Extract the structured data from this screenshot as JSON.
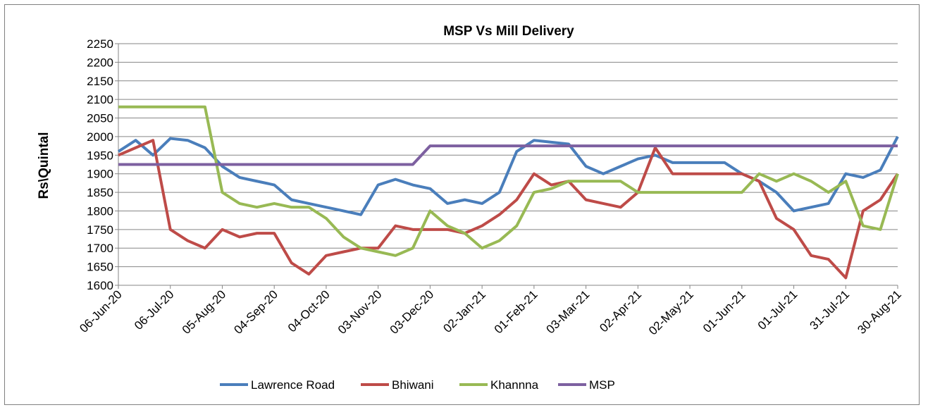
{
  "chart_data": {
    "type": "line",
    "title": "MSP Vs Mill Delivery",
    "y_label": "Rs\\Quintal",
    "x": [
      "06-Jun-20",
      "16-Jun-20",
      "26-Jun-20",
      "06-Jul-20",
      "16-Jul-20",
      "26-Jul-20",
      "05-Aug-20",
      "15-Aug-20",
      "25-Aug-20",
      "04-Sep-20",
      "14-Sep-20",
      "24-Sep-20",
      "04-Oct-20",
      "14-Oct-20",
      "24-Oct-20",
      "03-Nov-20",
      "13-Nov-20",
      "23-Nov-20",
      "03-Dec-20",
      "13-Dec-20",
      "23-Dec-20",
      "02-Jan-21",
      "12-Jan-21",
      "22-Jan-21",
      "01-Feb-21",
      "11-Feb-21",
      "21-Feb-21",
      "03-Mar-21",
      "13-Mar-21",
      "23-Mar-21",
      "02-Apr-21",
      "12-Apr-21",
      "22-Apr-21",
      "02-May-21",
      "12-May-21",
      "22-May-21",
      "01-Jun-21",
      "11-Jun-21",
      "21-Jun-21",
      "01-Jul-21",
      "11-Jul-21",
      "21-Jul-21",
      "31-Jul-21",
      "10-Aug-21",
      "20-Aug-21",
      "30-Aug-21"
    ],
    "series": [
      {
        "name": "Lawrence Road",
        "color": "#4a7ebb",
        "values": [
          1960,
          1990,
          1950,
          1995,
          1990,
          1970,
          1920,
          1890,
          1880,
          1870,
          1830,
          1820,
          1810,
          1800,
          1790,
          1870,
          1885,
          1870,
          1860,
          1820,
          1830,
          1820,
          1850,
          1960,
          1990,
          1985,
          1980,
          1920,
          1900,
          1920,
          1940,
          1950,
          1930,
          1930,
          1930,
          1930,
          1900,
          1880,
          1850,
          1800,
          1810,
          1820,
          1900,
          1890,
          1910,
          2000
        ]
      },
      {
        "name": "Bhiwani",
        "color": "#be4b48",
        "values": [
          1950,
          1970,
          1990,
          1750,
          1720,
          1700,
          1750,
          1730,
          1740,
          1740,
          1660,
          1630,
          1680,
          1690,
          1700,
          1700,
          1760,
          1750,
          1750,
          1750,
          1740,
          1760,
          1790,
          1830,
          1900,
          1870,
          1880,
          1830,
          1820,
          1810,
          1850,
          1970,
          1900,
          1900,
          1900,
          1900,
          1900,
          1880,
          1780,
          1750,
          1680,
          1670,
          1620,
          1800,
          1830,
          1900
        ]
      },
      {
        "name": "Khannna",
        "color": "#98b954",
        "values": [
          2080,
          2080,
          2080,
          2080,
          2080,
          2080,
          1850,
          1820,
          1810,
          1820,
          1810,
          1810,
          1780,
          1730,
          1700,
          1690,
          1680,
          1700,
          1800,
          1760,
          1740,
          1700,
          1720,
          1760,
          1850,
          1860,
          1880,
          1880,
          1880,
          1880,
          1850,
          1850,
          1850,
          1850,
          1850,
          1850,
          1850,
          1900,
          1880,
          1900,
          1880,
          1850,
          1880,
          1760,
          1750,
          1900
        ]
      },
      {
        "name": "MSP",
        "color": "#7d60a0",
        "values": [
          1925,
          1925,
          1925,
          1925,
          1925,
          1925,
          1925,
          1925,
          1925,
          1925,
          1925,
          1925,
          1925,
          1925,
          1925,
          1925,
          1925,
          1925,
          1975,
          1975,
          1975,
          1975,
          1975,
          1975,
          1975,
          1975,
          1975,
          1975,
          1975,
          1975,
          1975,
          1975,
          1975,
          1975,
          1975,
          1975,
          1975,
          1975,
          1975,
          1975,
          1975,
          1975,
          1975,
          1975,
          1975,
          1975
        ]
      }
    ],
    "xlim": [
      "06-Jun-20",
      "30-Aug-21"
    ],
    "xticks": [
      "06-Jun-20",
      "06-Jul-20",
      "05-Aug-20",
      "04-Sep-20",
      "04-Oct-20",
      "03-Nov-20",
      "03-Dec-20",
      "02-Jan-21",
      "01-Feb-21",
      "03-Mar-21",
      "02-Apr-21",
      "02-May-21",
      "01-Jun-21",
      "01-Jul-21",
      "31-Jul-21",
      "30-Aug-21"
    ],
    "ylim": [
      1600,
      2250
    ],
    "yticks": [
      1600,
      1650,
      1700,
      1750,
      1800,
      1850,
      1900,
      1950,
      2000,
      2050,
      2100,
      2150,
      2200,
      2250
    ],
    "grid": true,
    "legend": "bottom"
  }
}
